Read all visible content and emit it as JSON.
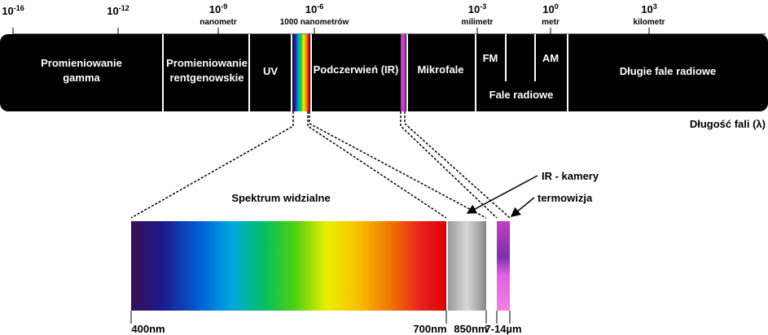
{
  "scale": {
    "ticks": [
      {
        "base": "10",
        "exp": "-16"
      },
      {
        "base": "10",
        "exp": "-12"
      },
      {
        "base": "10",
        "exp": "-9",
        "unit": "nanometr"
      },
      {
        "base": "10",
        "exp": "-6",
        "unit": "1000 nanometrów"
      },
      {
        "base": "10",
        "exp": "-3",
        "unit": "milimetr"
      },
      {
        "base": "10",
        "exp": "0",
        "unit": "metr"
      },
      {
        "base": "10",
        "exp": "3",
        "unit": "kilometr"
      }
    ],
    "axis_label": "Długość fali (λ)"
  },
  "bands": [
    {
      "lines": [
        "Promieniowanie",
        "gamma"
      ]
    },
    {
      "lines": [
        "Promieniowanie",
        "rentgenowskie"
      ]
    },
    {
      "lines": [
        "UV"
      ]
    },
    {
      "lines": [
        "Podczerwień (IR)"
      ]
    },
    {
      "lines": [
        "Mikrofale"
      ]
    },
    {
      "lines": [
        "FM"
      ]
    },
    {
      "lines": [
        "AM"
      ]
    },
    {
      "lines": [
        "Fale radiowe"
      ]
    },
    {
      "lines": [
        "Długie fale radiowe"
      ]
    }
  ],
  "visible": {
    "title": "Spektrum widzialne",
    "labels": [
      "400nm",
      "700nm",
      "850nm",
      "7-14µm"
    ]
  },
  "callouts": [
    "IR - kamery",
    "termowizja"
  ]
}
